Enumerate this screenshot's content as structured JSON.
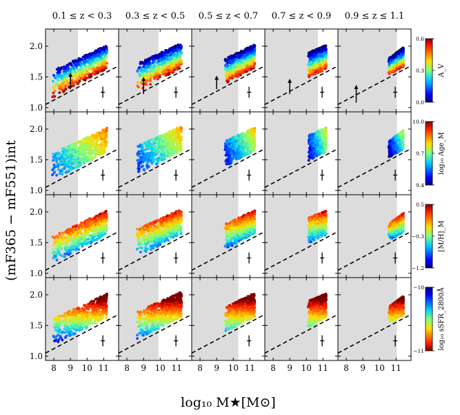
{
  "figure": {
    "xlabel": "log₁₀ M★[M⊙]",
    "ylabel": "(mF365 − mF551)int"
  },
  "columns": [
    "0.1 ≤ z < 0.3",
    "0.3 ≤ z < 0.5",
    "0.5 ≤ z < 0.7",
    "0.7 ≤ z < 0.9",
    "0.9 ≤ z ≤ 1.1"
  ],
  "colorbars": [
    {
      "label": "A_V",
      "ticks": [
        "0.6",
        "0.3",
        "0.0"
      ],
      "min": 0.0,
      "max": 0.6,
      "cmap": "jet"
    },
    {
      "label": "log₁₀ Age_M",
      "ticks": [
        "10.0",
        "9.7",
        "9.4"
      ],
      "min": 9.4,
      "max": 10.0,
      "cmap": "jet"
    },
    {
      "label": "[M/H]_M",
      "ticks": [
        "0.5",
        "−0.3",
        "−1.2"
      ],
      "min": -1.2,
      "max": 0.5,
      "cmap": "jet"
    },
    {
      "label": "log₁₀ sSFR_2800Å",
      "ticks": [
        "−10",
        "−11"
      ],
      "min": -11,
      "max": -10,
      "cmap": "jet_r"
    }
  ],
  "chart_data": {
    "type": "scatter",
    "panel_grid": {
      "rows": 4,
      "cols": 5
    },
    "xlim": [
      7.5,
      11.9
    ],
    "ylim": [
      0.93,
      2.28
    ],
    "xticks": [
      8,
      9,
      10,
      11
    ],
    "yticks": [
      1.0,
      1.5,
      2.0
    ],
    "xticklabels": [
      "8",
      "9",
      "10",
      "11"
    ],
    "yticklabels": [
      "1.0",
      "1.5",
      "2.0"
    ],
    "mass_limits": [
      9.45,
      9.9,
      10.3,
      10.7,
      11.05
    ],
    "dashed_line": {
      "x": [
        7.5,
        11.9
      ],
      "y": [
        1.05,
        1.68
      ]
    },
    "error_bar": {
      "x": 10.95,
      "y": 1.25,
      "yerr": 0.09
    },
    "av_arrow": {
      "x": [
        9.0,
        9.0,
        9.0,
        9.0,
        8.6
      ],
      "y0": [
        1.3,
        1.22,
        1.3,
        1.22,
        1.08
      ],
      "y1": [
        1.57,
        1.5,
        1.52,
        1.47,
        1.37
      ]
    },
    "clouds": [
      {
        "xmin": 7.9,
        "xmax": 11.2,
        "top_left": 1.6,
        "top_right": 2.02
      },
      {
        "xmin": 8.6,
        "xmax": 11.3,
        "top_left": 1.72,
        "top_right": 2.05
      },
      {
        "xmin": 9.5,
        "xmax": 11.3,
        "top_left": 1.8,
        "top_right": 2.03
      },
      {
        "xmin": 10.1,
        "xmax": 11.2,
        "top_left": 1.9,
        "top_right": 2.02
      },
      {
        "xmin": 10.55,
        "xmax": 11.45,
        "top_left": 1.8,
        "top_right": 1.98
      }
    ]
  }
}
